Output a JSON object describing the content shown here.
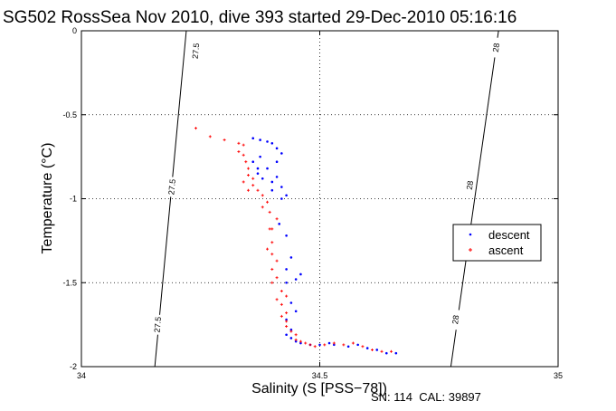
{
  "chart_data": {
    "type": "scatter",
    "title": "SG502 RossSea Nov 2010, dive 393 started 29-Dec-2010 05:16:16",
    "xlabel": "Salinity (S [PSS−78])",
    "ylabel": "Temperature (°C)",
    "xlim": [
      34,
      35
    ],
    "ylim": [
      -2,
      0
    ],
    "xticks": [
      34,
      34.5,
      35
    ],
    "yticks": [
      0,
      -0.5,
      -1,
      -1.5,
      -2
    ],
    "xtick_labels": [
      "34",
      "34.5",
      "35"
    ],
    "ytick_labels": [
      "0",
      "-0.5",
      "-1",
      "-1.5",
      "-2"
    ],
    "grid": true,
    "legend_position": "right",
    "colors": {
      "descent": "#0000ff",
      "ascent": "#ff0000",
      "contour": "#000000"
    },
    "density_contours": [
      {
        "label": "27.5",
        "points": [
          [
            34.22,
            0
          ],
          [
            34.154,
            -2
          ]
        ],
        "label_positions": [
          [
            34.24,
            -0.12
          ],
          [
            34.19,
            -0.93
          ],
          [
            34.16,
            -1.75
          ]
        ]
      },
      {
        "label": "28",
        "points": [
          [
            34.875,
            0
          ],
          [
            34.775,
            -2
          ]
        ],
        "label_positions": [
          [
            34.87,
            -0.1
          ],
          [
            34.815,
            -0.92
          ],
          [
            34.785,
            -1.72
          ]
        ]
      }
    ],
    "series": [
      {
        "name": "descent",
        "marker": ".",
        "color": "#0000ff",
        "points": [
          [
            34.36,
            -0.64
          ],
          [
            34.375,
            -0.65
          ],
          [
            34.39,
            -0.66
          ],
          [
            34.4,
            -0.67
          ],
          [
            34.41,
            -0.7
          ],
          [
            34.42,
            -0.73
          ],
          [
            34.41,
            -0.78
          ],
          [
            34.39,
            -0.82
          ],
          [
            34.375,
            -0.75
          ],
          [
            34.37,
            -0.82
          ],
          [
            34.37,
            -0.85
          ],
          [
            34.36,
            -0.78
          ],
          [
            34.38,
            -0.88
          ],
          [
            34.4,
            -0.9
          ],
          [
            34.41,
            -0.87
          ],
          [
            34.42,
            -0.93
          ],
          [
            34.43,
            -0.98
          ],
          [
            34.42,
            -1.0
          ],
          [
            34.4,
            -0.95
          ],
          [
            34.415,
            -1.15
          ],
          [
            34.43,
            -1.22
          ],
          [
            34.44,
            -1.35
          ],
          [
            34.43,
            -1.42
          ],
          [
            34.43,
            -1.5
          ],
          [
            34.45,
            -1.48
          ],
          [
            34.46,
            -1.45
          ],
          [
            34.44,
            -1.62
          ],
          [
            34.45,
            -1.67
          ],
          [
            34.43,
            -1.72
          ],
          [
            34.44,
            -1.78
          ],
          [
            34.43,
            -1.81
          ],
          [
            34.44,
            -1.83
          ],
          [
            34.45,
            -1.85
          ],
          [
            34.46,
            -1.86
          ],
          [
            34.48,
            -1.87
          ],
          [
            34.5,
            -1.87
          ],
          [
            34.52,
            -1.86
          ],
          [
            34.53,
            -1.87
          ],
          [
            34.56,
            -1.88
          ],
          [
            34.58,
            -1.87
          ],
          [
            34.6,
            -1.89
          ],
          [
            34.62,
            -1.9
          ],
          [
            34.64,
            -1.92
          ],
          [
            34.66,
            -1.92
          ]
        ]
      },
      {
        "name": "ascent",
        "marker": "+",
        "color": "#ff0000",
        "points": [
          [
            34.27,
            -0.63
          ],
          [
            34.3,
            -0.65
          ],
          [
            34.33,
            -0.67
          ],
          [
            34.34,
            -0.68
          ],
          [
            34.33,
            -0.72
          ],
          [
            34.34,
            -0.74
          ],
          [
            34.345,
            -0.78
          ],
          [
            34.35,
            -0.82
          ],
          [
            34.35,
            -0.86
          ],
          [
            34.34,
            -0.9
          ],
          [
            34.35,
            -0.95
          ],
          [
            34.36,
            -0.92
          ],
          [
            34.37,
            -0.95
          ],
          [
            34.38,
            -0.98
          ],
          [
            34.39,
            -1.02
          ],
          [
            34.395,
            -1.08
          ],
          [
            34.395,
            -1.18
          ],
          [
            34.4,
            -1.26
          ],
          [
            34.39,
            -1.3
          ],
          [
            34.4,
            -1.33
          ],
          [
            34.41,
            -1.37
          ],
          [
            34.4,
            -1.42
          ],
          [
            34.41,
            -1.47
          ],
          [
            34.4,
            -1.5
          ],
          [
            34.42,
            -1.55
          ],
          [
            34.43,
            -1.58
          ],
          [
            34.41,
            -1.6
          ],
          [
            34.42,
            -1.63
          ],
          [
            34.43,
            -1.68
          ],
          [
            34.42,
            -1.7
          ],
          [
            34.43,
            -1.73
          ],
          [
            34.43,
            -1.76
          ],
          [
            34.44,
            -1.79
          ],
          [
            34.45,
            -1.81
          ],
          [
            34.45,
            -1.84
          ],
          [
            34.46,
            -1.85
          ],
          [
            34.47,
            -1.86
          ],
          [
            34.48,
            -1.87
          ],
          [
            34.49,
            -1.88
          ],
          [
            34.51,
            -1.87
          ],
          [
            34.53,
            -1.86
          ],
          [
            34.55,
            -1.87
          ],
          [
            34.57,
            -1.86
          ],
          [
            34.59,
            -1.88
          ],
          [
            34.61,
            -1.9
          ],
          [
            34.63,
            -1.91
          ],
          [
            34.65,
            -1.91
          ],
          [
            34.24,
            -0.58
          ],
          [
            34.36,
            -0.88
          ],
          [
            34.38,
            -1.05
          ],
          [
            34.4,
            -1.18
          ],
          [
            34.41,
            -1.12
          ]
        ]
      }
    ]
  },
  "footer": {
    "note": "SN: 114  CAL: 39897"
  }
}
